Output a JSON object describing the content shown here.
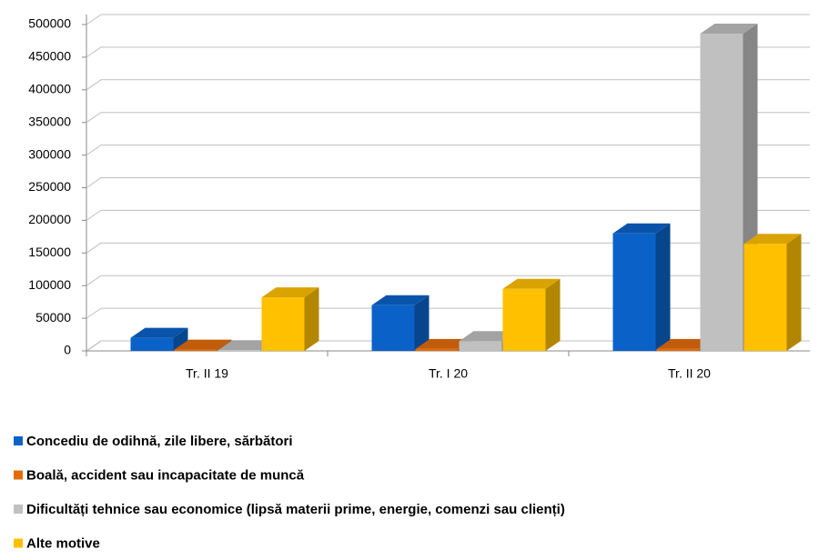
{
  "chart_data": {
    "type": "bar3d",
    "categories": [
      "Tr. II 19",
      "Tr. I 20",
      "Tr. II 20"
    ],
    "series": [
      {
        "name": "Concediu de odihnă, zile libere, sărbători",
        "color": "#0a62c9",
        "values": [
          20000,
          70000,
          180000
        ]
      },
      {
        "name": "Boală, accident sau incapacitate de muncă",
        "color": "#e36c0a",
        "values": [
          2000,
          3000,
          3000
        ]
      },
      {
        "name": "Dificultăți tehnice sau economice (lipsă materii prime, energie, comenzi sau clienți)",
        "color": "#c0c0c0",
        "values": [
          1000,
          15000,
          486000
        ]
      },
      {
        "name": "Alte motive",
        "color": "#ffc000",
        "values": [
          82000,
          95000,
          164000
        ]
      }
    ],
    "ylim": [
      0,
      500000
    ],
    "yticks": [
      0,
      50000,
      100000,
      150000,
      200000,
      250000,
      300000,
      350000,
      400000,
      450000,
      500000
    ],
    "grid": true,
    "legend": "bottom"
  }
}
